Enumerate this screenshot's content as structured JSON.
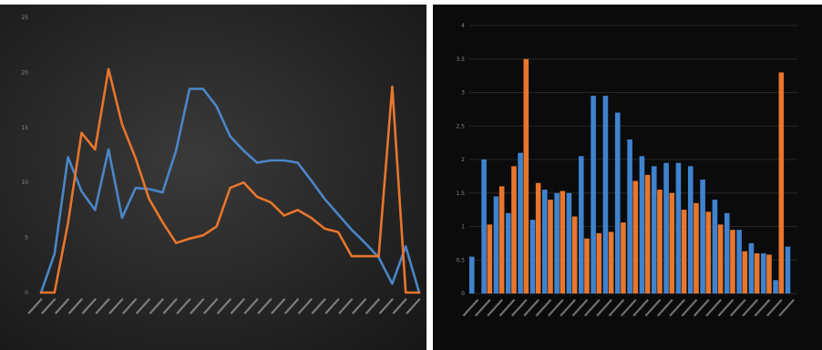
{
  "chart_data": [
    {
      "type": "line",
      "title": "",
      "xlabel": "",
      "ylabel": "",
      "ylim": [
        0,
        25
      ],
      "yticks": [
        0,
        5,
        10,
        15,
        20,
        25
      ],
      "grid": false,
      "colors": [
        "#4a86c8",
        "#e8762c"
      ],
      "series": [
        {
          "values": [
            0,
            3.5,
            12.3,
            9.2,
            7.5,
            13,
            6.8,
            9.5,
            9.4,
            9.1,
            12.9,
            18.5,
            18.5,
            16.9,
            14.2,
            12.9,
            11.8,
            12,
            12,
            11.8,
            10.2,
            8.5,
            7.1,
            5.7,
            4.5,
            3.2,
            0.8,
            4.2,
            0
          ]
        },
        {
          "values": [
            0,
            0,
            6.3,
            14.5,
            13,
            20.3,
            15.3,
            12.2,
            8.5,
            6.4,
            4.5,
            4.9,
            5.2,
            6,
            9.5,
            10,
            8.7,
            8.2,
            7,
            7.5,
            6.8,
            5.8,
            5.5,
            3.3,
            3.3,
            3.3,
            18.7,
            0,
            0
          ]
        }
      ]
    },
    {
      "type": "bar",
      "title": "",
      "xlabel": "",
      "ylabel": "",
      "ylim": [
        0,
        4
      ],
      "yticks": [
        0,
        0.5,
        1,
        1.5,
        2,
        2.5,
        3,
        3.5,
        4
      ],
      "ytick_labels": [
        "0",
        "0.5",
        "1",
        "1.5",
        "2",
        "2.5",
        "3",
        "3.5",
        "4"
      ],
      "grid": true,
      "colors": [
        "#3f83cf",
        "#e8762c"
      ],
      "series": [
        {
          "values": [
            0.55,
            2,
            1.45,
            1.2,
            2.1,
            1.1,
            1.55,
            1.5,
            1.5,
            2.05,
            2.95,
            2.95,
            2.7,
            2.3,
            2.05,
            1.9,
            1.95,
            1.95,
            1.9,
            1.7,
            1.4,
            1.2,
            0.95,
            0.75,
            0.6,
            0.2,
            0.7
          ]
        },
        {
          "values": [
            0,
            1.03,
            1.6,
            1.9,
            3.5,
            1.65,
            1.4,
            1.53,
            1.15,
            0.82,
            0.9,
            0.92,
            1.06,
            1.68,
            1.77,
            1.55,
            1.5,
            1.25,
            1.35,
            1.22,
            1.03,
            0.95,
            0.63,
            0.6,
            0.58,
            3.3,
            0
          ]
        }
      ]
    }
  ]
}
